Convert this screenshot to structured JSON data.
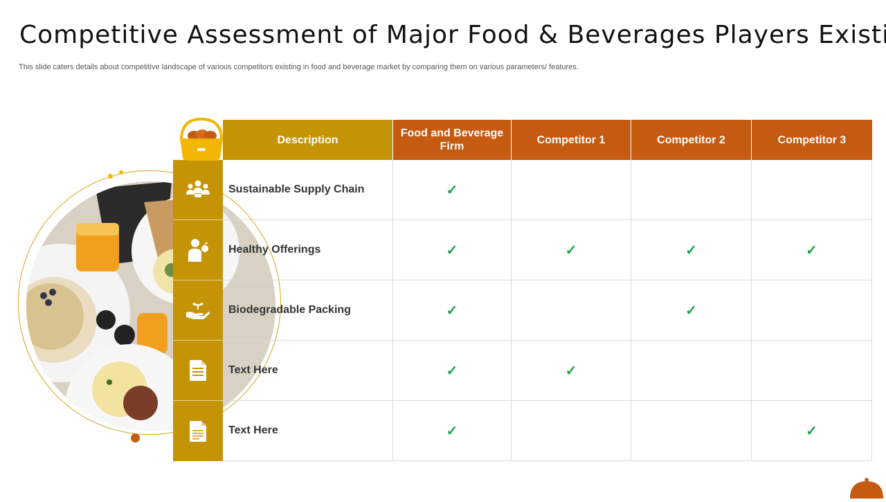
{
  "slide": {
    "title": "Competitive Assessment of Major Food & Beverages Players Existing",
    "subtitle": "This slide caters details about competitive landscape of various competitors existing in food and beverage market by comparing them on various parameters/ features."
  },
  "table": {
    "headers": {
      "description": "Description",
      "firm": "Food and Beverage Firm",
      "c1": "Competitor 1",
      "c2": "Competitor 2",
      "c3": "Competitor 3"
    },
    "check_symbol": "✓",
    "rows": [
      {
        "label": "Sustainable Supply Chain",
        "icon": "people-group-icon",
        "firm": "✓",
        "c1": "",
        "c2": "",
        "c3": ""
      },
      {
        "label": "Healthy Offerings",
        "icon": "person-with-apple-icon",
        "firm": "✓",
        "c1": "✓",
        "c2": "✓",
        "c3": "✓"
      },
      {
        "label": "Biodegradable Packing",
        "icon": "hand-with-plant-icon",
        "firm": "✓",
        "c1": "",
        "c2": "✓",
        "c3": ""
      },
      {
        "label": "Text Here",
        "icon": "document-text-icon",
        "firm": "✓",
        "c1": "✓",
        "c2": "",
        "c3": ""
      },
      {
        "label": "Text Here",
        "icon": "document-icon",
        "firm": "✓",
        "c1": "",
        "c2": "",
        "c3": "✓"
      }
    ]
  },
  "colors": {
    "gold": "#c59306",
    "orange": "#c55a11",
    "check_green": "#16a34a"
  }
}
